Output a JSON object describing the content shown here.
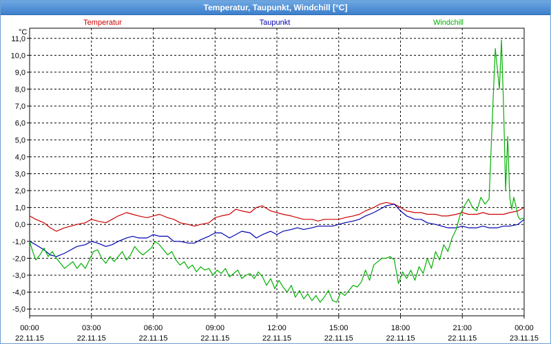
{
  "window": {
    "title": "Temperatur, Taupunkt, Windchill [°C]"
  },
  "chart_data": {
    "type": "line",
    "title": "Temperatur, Taupunkt, Windchill [°C]",
    "ylabel": "°C",
    "xlabel": "",
    "ylim": [
      -5.4,
      11.6
    ],
    "xlim": [
      0,
      24
    ],
    "grid": true,
    "legend_position": "top",
    "y_ticks": [
      "11,0",
      "10,0",
      "9,0",
      "8,0",
      "7,0",
      "6,0",
      "5,0",
      "4,0",
      "3,0",
      "2,0",
      "1,0",
      "0,0",
      "-1,0",
      "-2,0",
      "-3,0",
      "-4,0",
      "-5,0"
    ],
    "x_ticks": [
      {
        "time": "00:00",
        "date": "22.11.15"
      },
      {
        "time": "03:00",
        "date": "22.11.15"
      },
      {
        "time": "06:00",
        "date": "22.11.15"
      },
      {
        "time": "09:00",
        "date": "22.11.15"
      },
      {
        "time": "12:00",
        "date": "22.11.15"
      },
      {
        "time": "15:00",
        "date": "22.11.15"
      },
      {
        "time": "18:00",
        "date": "22.11.15"
      },
      {
        "time": "21:00",
        "date": "22.11.15"
      },
      {
        "time": "00:00",
        "date": "23.11.15"
      }
    ],
    "series": [
      {
        "name": "Temperatur",
        "color": "#cc0000",
        "x": [
          0,
          0.3,
          0.7,
          1.0,
          1.3,
          1.7,
          2.0,
          2.3,
          2.7,
          3.0,
          3.3,
          3.7,
          4.0,
          4.3,
          4.7,
          5.0,
          5.3,
          5.7,
          6.0,
          6.3,
          6.7,
          7.0,
          7.3,
          7.7,
          8.0,
          8.3,
          8.7,
          9.0,
          9.3,
          9.7,
          10.0,
          10.3,
          10.7,
          11.0,
          11.3,
          11.7,
          12.0,
          12.3,
          12.7,
          13.0,
          13.3,
          13.7,
          14.0,
          14.3,
          14.7,
          15.0,
          15.3,
          15.7,
          16.0,
          16.3,
          16.7,
          17.0,
          17.3,
          17.7,
          18.0,
          18.3,
          18.7,
          19.0,
          19.3,
          19.7,
          20.0,
          20.3,
          20.7,
          21.0,
          21.3,
          21.7,
          22.0,
          22.3,
          22.7,
          23.0,
          23.3,
          23.7,
          24.0
        ],
        "y": [
          0.5,
          0.3,
          0.1,
          -0.2,
          -0.4,
          -0.2,
          -0.1,
          0.0,
          0.1,
          0.3,
          0.2,
          0.1,
          0.3,
          0.5,
          0.7,
          0.6,
          0.5,
          0.4,
          0.5,
          0.6,
          0.4,
          0.3,
          0.1,
          0.0,
          -0.1,
          0.0,
          0.1,
          0.4,
          0.5,
          0.6,
          0.9,
          0.8,
          0.7,
          1.0,
          1.1,
          0.8,
          0.7,
          0.6,
          0.5,
          0.4,
          0.3,
          0.3,
          0.2,
          0.3,
          0.3,
          0.3,
          0.4,
          0.5,
          0.6,
          0.8,
          1.0,
          1.2,
          1.3,
          1.2,
          1.0,
          0.8,
          0.7,
          0.7,
          0.6,
          0.6,
          0.5,
          0.5,
          0.6,
          0.7,
          0.6,
          0.6,
          0.7,
          0.6,
          0.6,
          0.6,
          0.7,
          0.8,
          1.0
        ]
      },
      {
        "name": "Taupunkt",
        "color": "#0000b0",
        "x": [
          0,
          0.3,
          0.7,
          1.0,
          1.3,
          1.7,
          2.0,
          2.3,
          2.7,
          3.0,
          3.3,
          3.7,
          4.0,
          4.3,
          4.7,
          5.0,
          5.3,
          5.7,
          6.0,
          6.3,
          6.7,
          7.0,
          7.3,
          7.7,
          8.0,
          8.3,
          8.7,
          9.0,
          9.3,
          9.7,
          10.0,
          10.3,
          10.7,
          11.0,
          11.3,
          11.7,
          12.0,
          12.3,
          12.7,
          13.0,
          13.3,
          13.7,
          14.0,
          14.3,
          14.7,
          15.0,
          15.3,
          15.7,
          16.0,
          16.3,
          16.7,
          17.0,
          17.3,
          17.7,
          18.0,
          18.3,
          18.7,
          19.0,
          19.3,
          19.7,
          20.0,
          20.3,
          20.7,
          21.0,
          21.3,
          21.7,
          22.0,
          22.3,
          22.7,
          23.0,
          23.3,
          23.7,
          24.0
        ],
        "y": [
          -1.0,
          -1.2,
          -1.5,
          -1.8,
          -1.9,
          -1.7,
          -1.5,
          -1.3,
          -1.2,
          -1.0,
          -1.1,
          -1.3,
          -1.2,
          -1.0,
          -0.8,
          -0.7,
          -0.8,
          -0.8,
          -0.6,
          -0.7,
          -0.7,
          -1.0,
          -1.0,
          -1.1,
          -1.1,
          -0.9,
          -0.7,
          -0.5,
          -0.5,
          -0.8,
          -0.6,
          -0.4,
          -0.5,
          -0.8,
          -0.6,
          -0.4,
          -0.6,
          -0.4,
          -0.3,
          -0.2,
          -0.3,
          -0.2,
          -0.1,
          -0.1,
          -0.1,
          0.0,
          0.1,
          0.2,
          0.3,
          0.5,
          0.7,
          0.9,
          1.1,
          1.2,
          0.8,
          0.5,
          0.3,
          0.3,
          0.1,
          0.0,
          -0.1,
          -0.2,
          -0.2,
          -0.1,
          -0.2,
          -0.2,
          -0.1,
          -0.2,
          -0.2,
          -0.1,
          -0.1,
          0.0,
          0.3
        ]
      },
      {
        "name": "Windchill",
        "color": "#00b000",
        "x": [
          0,
          0.15,
          0.3,
          0.5,
          0.7,
          0.9,
          1.1,
          1.3,
          1.5,
          1.7,
          1.9,
          2.1,
          2.3,
          2.5,
          2.7,
          2.9,
          3.1,
          3.3,
          3.5,
          3.7,
          3.9,
          4.1,
          4.3,
          4.5,
          4.7,
          4.9,
          5.1,
          5.3,
          5.5,
          5.7,
          5.9,
          6.1,
          6.3,
          6.5,
          6.7,
          6.9,
          7.1,
          7.3,
          7.5,
          7.7,
          7.9,
          8.1,
          8.3,
          8.5,
          8.7,
          8.9,
          9.1,
          9.3,
          9.5,
          9.7,
          9.9,
          10.1,
          10.3,
          10.5,
          10.7,
          10.9,
          11.1,
          11.3,
          11.5,
          11.7,
          11.9,
          12.1,
          12.3,
          12.5,
          12.7,
          12.9,
          13.1,
          13.3,
          13.5,
          13.7,
          13.9,
          14.1,
          14.3,
          14.5,
          14.7,
          14.9,
          15.1,
          15.3,
          15.5,
          15.7,
          15.9,
          16.1,
          16.3,
          16.5,
          16.7,
          16.9,
          17.1,
          17.3,
          17.5,
          17.7,
          17.9,
          18.1,
          18.3,
          18.5,
          18.7,
          18.9,
          19.1,
          19.3,
          19.5,
          19.7,
          19.9,
          20.1,
          20.3,
          20.5,
          20.7,
          20.9,
          21.1,
          21.3,
          21.5,
          21.7,
          21.9,
          22.1,
          22.3,
          22.5,
          22.6,
          22.7,
          22.8,
          22.9,
          23.0,
          23.1,
          23.2,
          23.3,
          23.4,
          23.5,
          23.6,
          23.7,
          23.8,
          24.0
        ],
        "y": [
          -1.0,
          -1.6,
          -2.1,
          -1.8,
          -1.4,
          -1.9,
          -1.6,
          -2.0,
          -2.3,
          -2.6,
          -2.4,
          -2.2,
          -2.6,
          -2.3,
          -2.6,
          -2.1,
          -1.6,
          -1.5,
          -2.0,
          -2.3,
          -1.9,
          -2.2,
          -1.9,
          -1.6,
          -2.1,
          -1.8,
          -1.3,
          -1.6,
          -1.8,
          -1.6,
          -1.4,
          -1.0,
          -1.2,
          -1.5,
          -1.8,
          -1.6,
          -2.1,
          -2.4,
          -2.2,
          -2.6,
          -2.4,
          -2.8,
          -2.5,
          -2.7,
          -2.6,
          -3.0,
          -2.7,
          -2.9,
          -2.6,
          -3.1,
          -2.9,
          -2.7,
          -3.2,
          -3.0,
          -2.9,
          -3.2,
          -2.8,
          -3.1,
          -3.6,
          -3.2,
          -3.8,
          -3.3,
          -3.7,
          -4.0,
          -3.6,
          -4.3,
          -3.9,
          -4.4,
          -4.1,
          -4.5,
          -4.2,
          -4.6,
          -4.3,
          -3.9,
          -4.5,
          -4.6,
          -4.0,
          -4.2,
          -3.9,
          -3.6,
          -3.7,
          -3.4,
          -2.7,
          -3.3,
          -2.4,
          -2.2,
          -2.0,
          -2.0,
          -1.9,
          -2.1,
          -3.5,
          -2.8,
          -3.2,
          -2.7,
          -3.3,
          -2.5,
          -2.9,
          -2.0,
          -2.6,
          -1.6,
          -2.1,
          -1.2,
          -1.6,
          -0.8,
          -0.3,
          0.6,
          1.1,
          1.5,
          1.0,
          0.8,
          1.6,
          1.2,
          1.5,
          7.5,
          10.4,
          9.2,
          8.0,
          10.9,
          7.0,
          2.0,
          5.2,
          1.6,
          0.9,
          1.6,
          1.1,
          0.5,
          0.3,
          0.4
        ]
      }
    ]
  }
}
